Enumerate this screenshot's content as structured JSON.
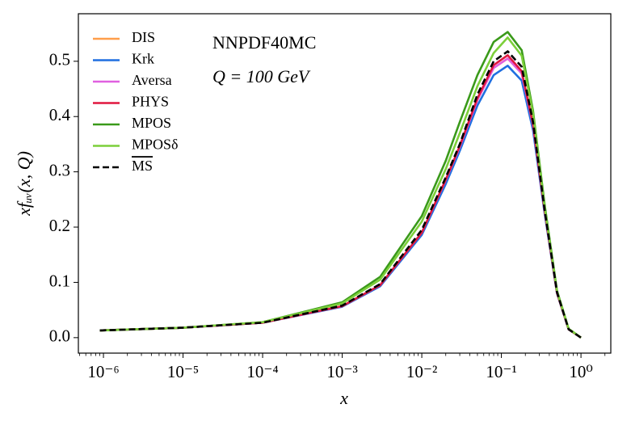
{
  "chart_data": {
    "type": "line",
    "annotations": [
      "NNPDF40MC",
      "Q = 100 GeV"
    ],
    "xlabel": "x",
    "ylabel": "xfᵤᵥ(x, Q)",
    "x": [
      9e-07,
      1e-05,
      0.0001,
      0.001,
      0.003,
      0.01,
      0.02,
      0.03,
      0.05,
      0.08,
      0.12,
      0.18,
      0.25,
      0.35,
      0.5,
      0.7,
      1.0
    ],
    "series": [
      {
        "name": "DIS",
        "color": "#ff9e4a",
        "values": [
          0.013,
          0.018,
          0.027,
          0.057,
          0.095,
          0.19,
          0.285,
          0.345,
          0.43,
          0.488,
          0.505,
          0.478,
          0.384,
          0.228,
          0.081,
          0.015,
          0
        ]
      },
      {
        "name": "Krk",
        "color": "#1f6fe0",
        "values": [
          0.013,
          0.018,
          0.027,
          0.056,
          0.093,
          0.186,
          0.278,
          0.338,
          0.42,
          0.475,
          0.492,
          0.465,
          0.375,
          0.224,
          0.08,
          0.015,
          0
        ]
      },
      {
        "name": "Aversa",
        "color": "#e060e0",
        "values": [
          0.013,
          0.018,
          0.027,
          0.057,
          0.095,
          0.19,
          0.285,
          0.345,
          0.43,
          0.488,
          0.505,
          0.478,
          0.384,
          0.228,
          0.081,
          0.015,
          0
        ]
      },
      {
        "name": "PHYS",
        "color": "#e0173f",
        "values": [
          0.013,
          0.018,
          0.027,
          0.057,
          0.095,
          0.19,
          0.286,
          0.347,
          0.433,
          0.493,
          0.511,
          0.482,
          0.386,
          0.229,
          0.081,
          0.015,
          0
        ]
      },
      {
        "name": "MPOS",
        "color": "#3a9a1a",
        "values": [
          0.013,
          0.018,
          0.028,
          0.064,
          0.11,
          0.22,
          0.32,
          0.39,
          0.475,
          0.535,
          0.553,
          0.52,
          0.41,
          0.24,
          0.085,
          0.016,
          0
        ]
      },
      {
        "name": "MPOSδ",
        "color": "#7ccf3a",
        "values": [
          0.013,
          0.018,
          0.028,
          0.062,
          0.105,
          0.21,
          0.305,
          0.37,
          0.455,
          0.515,
          0.543,
          0.51,
          0.405,
          0.235,
          0.083,
          0.016,
          0
        ]
      },
      {
        "name": "MS",
        "color": "#000000",
        "linestyle": "dashed",
        "values": [
          0.013,
          0.018,
          0.027,
          0.058,
          0.097,
          0.195,
          0.29,
          0.35,
          0.44,
          0.5,
          0.518,
          0.49,
          0.39,
          0.23,
          0.082,
          0.015,
          0
        ]
      }
    ],
    "xscale": "log",
    "xlim": [
      4.84e-07,
      2.37
    ],
    "ylim": [
      -0.028,
      0.586
    ],
    "xticks": [
      {
        "value": 1e-06,
        "label": "10⁻⁶"
      },
      {
        "value": 1e-05,
        "label": "10⁻⁵"
      },
      {
        "value": 0.0001,
        "label": "10⁻⁴"
      },
      {
        "value": 0.001,
        "label": "10⁻³"
      },
      {
        "value": 0.01,
        "label": "10⁻²"
      },
      {
        "value": 0.1,
        "label": "10⁻¹"
      },
      {
        "value": 1,
        "label": "10⁰"
      }
    ],
    "yticks": [
      {
        "value": 0,
        "label": "0.0"
      },
      0.1,
      0.2,
      0.3,
      0.4,
      0.5
    ],
    "legend": "upper left"
  }
}
